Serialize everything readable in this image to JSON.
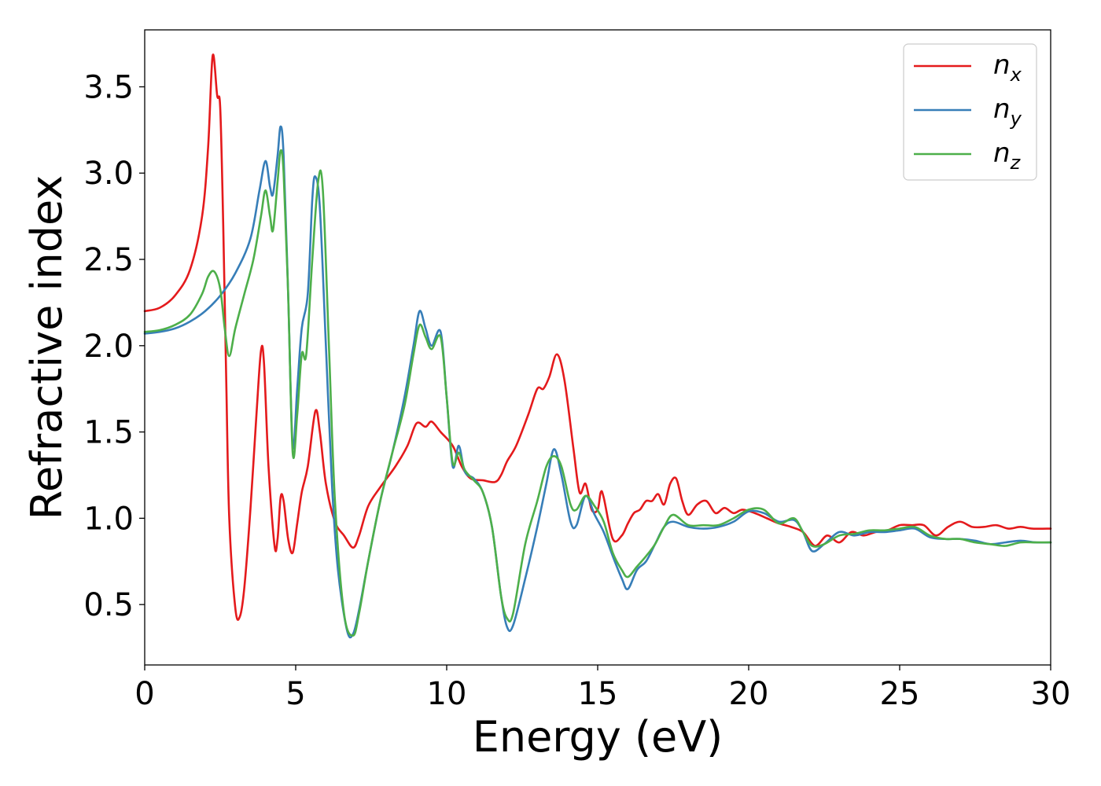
{
  "chart_data": {
    "type": "line",
    "title": "",
    "xlabel": "Energy (eV)",
    "ylabel": "Refractive index",
    "xlim": [
      0,
      30
    ],
    "ylim": [
      0.15,
      3.83
    ],
    "x_ticks": [
      0,
      5,
      10,
      15,
      20,
      25,
      30
    ],
    "y_ticks": [
      0.5,
      1.0,
      1.5,
      2.0,
      2.5,
      3.0,
      3.5
    ],
    "x_tick_labels": [
      "0",
      "5",
      "10",
      "15",
      "20",
      "25",
      "30"
    ],
    "y_tick_labels": [
      "0.5",
      "1.0",
      "1.5",
      "2.0",
      "2.5",
      "3.0",
      "3.5"
    ],
    "grid": false,
    "legend_position": "top-right",
    "series": [
      {
        "name": "n_x",
        "label_main": "n",
        "label_sub": "x",
        "color": "#e41a1c",
        "points": [
          [
            0,
            2.2
          ],
          [
            0.5,
            2.22
          ],
          [
            1.0,
            2.29
          ],
          [
            1.5,
            2.44
          ],
          [
            1.9,
            2.75
          ],
          [
            2.1,
            3.15
          ],
          [
            2.25,
            3.68
          ],
          [
            2.4,
            3.45
          ],
          [
            2.5,
            3.38
          ],
          [
            2.6,
            2.7
          ],
          [
            2.7,
            1.8
          ],
          [
            2.8,
            1.0
          ],
          [
            3.0,
            0.48
          ],
          [
            3.15,
            0.43
          ],
          [
            3.3,
            0.6
          ],
          [
            3.5,
            1.05
          ],
          [
            3.7,
            1.6
          ],
          [
            3.85,
            1.97
          ],
          [
            3.95,
            1.9
          ],
          [
            4.1,
            1.3
          ],
          [
            4.3,
            0.84
          ],
          [
            4.4,
            0.88
          ],
          [
            4.5,
            1.12
          ],
          [
            4.6,
            1.1
          ],
          [
            4.75,
            0.88
          ],
          [
            4.9,
            0.8
          ],
          [
            5.05,
            0.97
          ],
          [
            5.2,
            1.15
          ],
          [
            5.4,
            1.3
          ],
          [
            5.65,
            1.62
          ],
          [
            5.8,
            1.5
          ],
          [
            6.0,
            1.2
          ],
          [
            6.3,
            0.98
          ],
          [
            6.6,
            0.9
          ],
          [
            6.9,
            0.83
          ],
          [
            7.1,
            0.9
          ],
          [
            7.4,
            1.07
          ],
          [
            7.8,
            1.18
          ],
          [
            8.3,
            1.3
          ],
          [
            8.7,
            1.42
          ],
          [
            9.0,
            1.55
          ],
          [
            9.3,
            1.53
          ],
          [
            9.5,
            1.56
          ],
          [
            9.8,
            1.5
          ],
          [
            10.2,
            1.42
          ],
          [
            10.5,
            1.3
          ],
          [
            10.8,
            1.23
          ],
          [
            11.2,
            1.22
          ],
          [
            11.6,
            1.21
          ],
          [
            11.8,
            1.25
          ],
          [
            12.0,
            1.33
          ],
          [
            12.3,
            1.42
          ],
          [
            12.7,
            1.6
          ],
          [
            13.0,
            1.75
          ],
          [
            13.2,
            1.75
          ],
          [
            13.4,
            1.82
          ],
          [
            13.65,
            1.95
          ],
          [
            13.9,
            1.8
          ],
          [
            14.2,
            1.4
          ],
          [
            14.4,
            1.15
          ],
          [
            14.6,
            1.2
          ],
          [
            14.8,
            1.05
          ],
          [
            15.0,
            1.05
          ],
          [
            15.1,
            1.15
          ],
          [
            15.2,
            1.12
          ],
          [
            15.5,
            0.88
          ],
          [
            15.8,
            0.9
          ],
          [
            16.0,
            0.97
          ],
          [
            16.2,
            1.03
          ],
          [
            16.4,
            1.05
          ],
          [
            16.6,
            1.1
          ],
          [
            16.8,
            1.1
          ],
          [
            17.0,
            1.14
          ],
          [
            17.2,
            1.08
          ],
          [
            17.4,
            1.2
          ],
          [
            17.6,
            1.23
          ],
          [
            17.8,
            1.1
          ],
          [
            18.0,
            1.02
          ],
          [
            18.3,
            1.08
          ],
          [
            18.6,
            1.1
          ],
          [
            18.9,
            1.03
          ],
          [
            19.2,
            1.06
          ],
          [
            19.5,
            1.03
          ],
          [
            19.8,
            1.05
          ],
          [
            20.2,
            1.03
          ],
          [
            20.6,
            1.0
          ],
          [
            21.0,
            0.97
          ],
          [
            21.4,
            0.95
          ],
          [
            21.8,
            0.92
          ],
          [
            22.2,
            0.84
          ],
          [
            22.6,
            0.9
          ],
          [
            23.0,
            0.86
          ],
          [
            23.4,
            0.92
          ],
          [
            23.8,
            0.9
          ],
          [
            24.2,
            0.92
          ],
          [
            24.6,
            0.93
          ],
          [
            25.0,
            0.96
          ],
          [
            25.4,
            0.96
          ],
          [
            25.8,
            0.96
          ],
          [
            26.2,
            0.9
          ],
          [
            26.6,
            0.95
          ],
          [
            27.0,
            0.98
          ],
          [
            27.4,
            0.95
          ],
          [
            27.8,
            0.95
          ],
          [
            28.2,
            0.96
          ],
          [
            28.6,
            0.94
          ],
          [
            29.0,
            0.95
          ],
          [
            29.4,
            0.94
          ],
          [
            30.0,
            0.94
          ]
        ]
      },
      {
        "name": "n_y",
        "label_main": "n",
        "label_sub": "y",
        "color": "#377eb8",
        "points": [
          [
            0,
            2.07
          ],
          [
            0.5,
            2.08
          ],
          [
            1.0,
            2.1
          ],
          [
            1.5,
            2.14
          ],
          [
            2.0,
            2.2
          ],
          [
            2.5,
            2.29
          ],
          [
            3.0,
            2.42
          ],
          [
            3.5,
            2.62
          ],
          [
            3.8,
            2.9
          ],
          [
            4.0,
            3.07
          ],
          [
            4.15,
            2.92
          ],
          [
            4.25,
            2.88
          ],
          [
            4.4,
            3.1
          ],
          [
            4.5,
            3.27
          ],
          [
            4.6,
            3.1
          ],
          [
            4.75,
            2.3
          ],
          [
            4.9,
            1.42
          ],
          [
            5.05,
            1.75
          ],
          [
            5.2,
            2.1
          ],
          [
            5.4,
            2.3
          ],
          [
            5.55,
            2.85
          ],
          [
            5.65,
            2.98
          ],
          [
            5.8,
            2.8
          ],
          [
            6.0,
            2.0
          ],
          [
            6.2,
            1.2
          ],
          [
            6.4,
            0.7
          ],
          [
            6.7,
            0.35
          ],
          [
            6.9,
            0.33
          ],
          [
            7.1,
            0.47
          ],
          [
            7.4,
            0.75
          ],
          [
            7.8,
            1.1
          ],
          [
            8.2,
            1.38
          ],
          [
            8.6,
            1.7
          ],
          [
            8.9,
            2.0
          ],
          [
            9.1,
            2.2
          ],
          [
            9.3,
            2.1
          ],
          [
            9.5,
            2.0
          ],
          [
            9.8,
            2.08
          ],
          [
            10.0,
            1.7
          ],
          [
            10.2,
            1.3
          ],
          [
            10.4,
            1.42
          ],
          [
            10.6,
            1.27
          ],
          [
            10.9,
            1.23
          ],
          [
            11.2,
            1.15
          ],
          [
            11.5,
            0.95
          ],
          [
            11.8,
            0.55
          ],
          [
            12.0,
            0.37
          ],
          [
            12.2,
            0.38
          ],
          [
            12.6,
            0.65
          ],
          [
            13.0,
            0.95
          ],
          [
            13.3,
            1.2
          ],
          [
            13.55,
            1.4
          ],
          [
            13.8,
            1.25
          ],
          [
            14.1,
            0.98
          ],
          [
            14.3,
            0.96
          ],
          [
            14.6,
            1.13
          ],
          [
            14.9,
            1.02
          ],
          [
            15.2,
            0.92
          ],
          [
            15.5,
            0.78
          ],
          [
            15.8,
            0.65
          ],
          [
            16.0,
            0.59
          ],
          [
            16.3,
            0.7
          ],
          [
            16.6,
            0.75
          ],
          [
            16.9,
            0.85
          ],
          [
            17.2,
            0.95
          ],
          [
            17.5,
            0.98
          ],
          [
            18.0,
            0.95
          ],
          [
            18.5,
            0.94
          ],
          [
            19.0,
            0.95
          ],
          [
            19.5,
            0.98
          ],
          [
            20.0,
            1.04
          ],
          [
            20.5,
            1.03
          ],
          [
            21.0,
            0.98
          ],
          [
            21.5,
            0.99
          ],
          [
            21.8,
            0.92
          ],
          [
            22.1,
            0.81
          ],
          [
            22.5,
            0.85
          ],
          [
            23.0,
            0.92
          ],
          [
            23.5,
            0.9
          ],
          [
            24.0,
            0.92
          ],
          [
            24.5,
            0.92
          ],
          [
            25.0,
            0.93
          ],
          [
            25.5,
            0.94
          ],
          [
            26.0,
            0.89
          ],
          [
            26.5,
            0.88
          ],
          [
            27.0,
            0.88
          ],
          [
            27.5,
            0.87
          ],
          [
            28.0,
            0.85
          ],
          [
            28.5,
            0.86
          ],
          [
            29.0,
            0.87
          ],
          [
            29.5,
            0.86
          ],
          [
            30.0,
            0.86
          ]
        ]
      },
      {
        "name": "n_z",
        "label_main": "n",
        "label_sub": "z",
        "color": "#4daf4a",
        "points": [
          [
            0,
            2.08
          ],
          [
            0.5,
            2.09
          ],
          [
            1.0,
            2.12
          ],
          [
            1.5,
            2.18
          ],
          [
            1.9,
            2.3
          ],
          [
            2.1,
            2.4
          ],
          [
            2.3,
            2.43
          ],
          [
            2.5,
            2.33
          ],
          [
            2.65,
            2.1
          ],
          [
            2.8,
            1.94
          ],
          [
            3.0,
            2.1
          ],
          [
            3.3,
            2.3
          ],
          [
            3.6,
            2.5
          ],
          [
            3.85,
            2.75
          ],
          [
            4.0,
            2.9
          ],
          [
            4.15,
            2.75
          ],
          [
            4.25,
            2.67
          ],
          [
            4.4,
            2.95
          ],
          [
            4.5,
            3.13
          ],
          [
            4.6,
            3.0
          ],
          [
            4.75,
            2.3
          ],
          [
            4.9,
            1.38
          ],
          [
            5.05,
            1.6
          ],
          [
            5.2,
            1.95
          ],
          [
            5.35,
            1.95
          ],
          [
            5.55,
            2.5
          ],
          [
            5.75,
            2.96
          ],
          [
            5.9,
            2.9
          ],
          [
            6.1,
            2.0
          ],
          [
            6.3,
            1.1
          ],
          [
            6.6,
            0.45
          ],
          [
            6.9,
            0.32
          ],
          [
            7.1,
            0.45
          ],
          [
            7.4,
            0.75
          ],
          [
            7.8,
            1.1
          ],
          [
            8.2,
            1.38
          ],
          [
            8.6,
            1.65
          ],
          [
            8.9,
            1.95
          ],
          [
            9.1,
            2.12
          ],
          [
            9.3,
            2.05
          ],
          [
            9.5,
            1.98
          ],
          [
            9.8,
            2.05
          ],
          [
            10.0,
            1.7
          ],
          [
            10.2,
            1.32
          ],
          [
            10.4,
            1.38
          ],
          [
            10.6,
            1.28
          ],
          [
            10.9,
            1.22
          ],
          [
            11.2,
            1.15
          ],
          [
            11.5,
            0.95
          ],
          [
            11.8,
            0.55
          ],
          [
            12.0,
            0.42
          ],
          [
            12.2,
            0.45
          ],
          [
            12.6,
            0.85
          ],
          [
            13.0,
            1.1
          ],
          [
            13.3,
            1.3
          ],
          [
            13.55,
            1.36
          ],
          [
            13.8,
            1.3
          ],
          [
            14.1,
            1.08
          ],
          [
            14.3,
            1.05
          ],
          [
            14.6,
            1.13
          ],
          [
            14.9,
            1.07
          ],
          [
            15.2,
            0.98
          ],
          [
            15.5,
            0.8
          ],
          [
            15.8,
            0.7
          ],
          [
            16.0,
            0.66
          ],
          [
            16.3,
            0.72
          ],
          [
            16.6,
            0.78
          ],
          [
            16.9,
            0.85
          ],
          [
            17.2,
            0.95
          ],
          [
            17.5,
            1.02
          ],
          [
            18.0,
            0.96
          ],
          [
            18.5,
            0.96
          ],
          [
            19.0,
            0.96
          ],
          [
            19.5,
            1.0
          ],
          [
            20.0,
            1.05
          ],
          [
            20.5,
            1.05
          ],
          [
            21.0,
            0.97
          ],
          [
            21.5,
            1.0
          ],
          [
            21.8,
            0.92
          ],
          [
            22.1,
            0.84
          ],
          [
            22.5,
            0.85
          ],
          [
            23.0,
            0.9
          ],
          [
            23.5,
            0.91
          ],
          [
            24.0,
            0.93
          ],
          [
            24.5,
            0.93
          ],
          [
            25.0,
            0.94
          ],
          [
            25.5,
            0.95
          ],
          [
            26.0,
            0.9
          ],
          [
            26.5,
            0.88
          ],
          [
            27.0,
            0.88
          ],
          [
            27.5,
            0.86
          ],
          [
            28.0,
            0.85
          ],
          [
            28.5,
            0.84
          ],
          [
            29.0,
            0.86
          ],
          [
            29.5,
            0.86
          ],
          [
            30.0,
            0.86
          ]
        ]
      }
    ]
  }
}
